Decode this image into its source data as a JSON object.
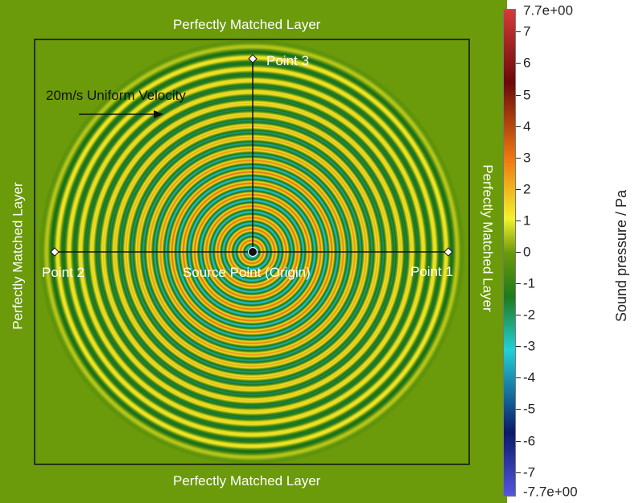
{
  "labels": {
    "pml_top": "Perfectly Matched Layer",
    "pml_bottom": "Perfectly Matched Layer",
    "pml_left": "Perfectly Matched Layer",
    "pml_right": "Perfectly Matched Layer",
    "point1": "Point 1",
    "point2": "Point 2",
    "point3": "Point 3",
    "source": "Source Point (Origin)",
    "velocity": "20m/s Uniform Velocity"
  },
  "colorbar": {
    "title": "Sound pressure / Pa",
    "max_label": "7.7e+00",
    "min_label": "-7.7e+00",
    "range": [
      -7.7,
      7.7
    ],
    "ticks": [
      "7",
      "6",
      "5",
      "4",
      "3",
      "2",
      "1",
      "0",
      "-1",
      "-2",
      "-3",
      "-4",
      "-5",
      "-6",
      "-7"
    ],
    "colors": {
      "high": "#d63a3a",
      "dark_red": "#6b0a0a",
      "orange": "#f07a10",
      "yellow": "#f2f22a",
      "green": "#6b9a0a",
      "dark_green": "#1e7a1a",
      "cyan": "#22d0d8",
      "dark_blue": "#0a1a6a",
      "low": "#5555e0"
    }
  }
}
